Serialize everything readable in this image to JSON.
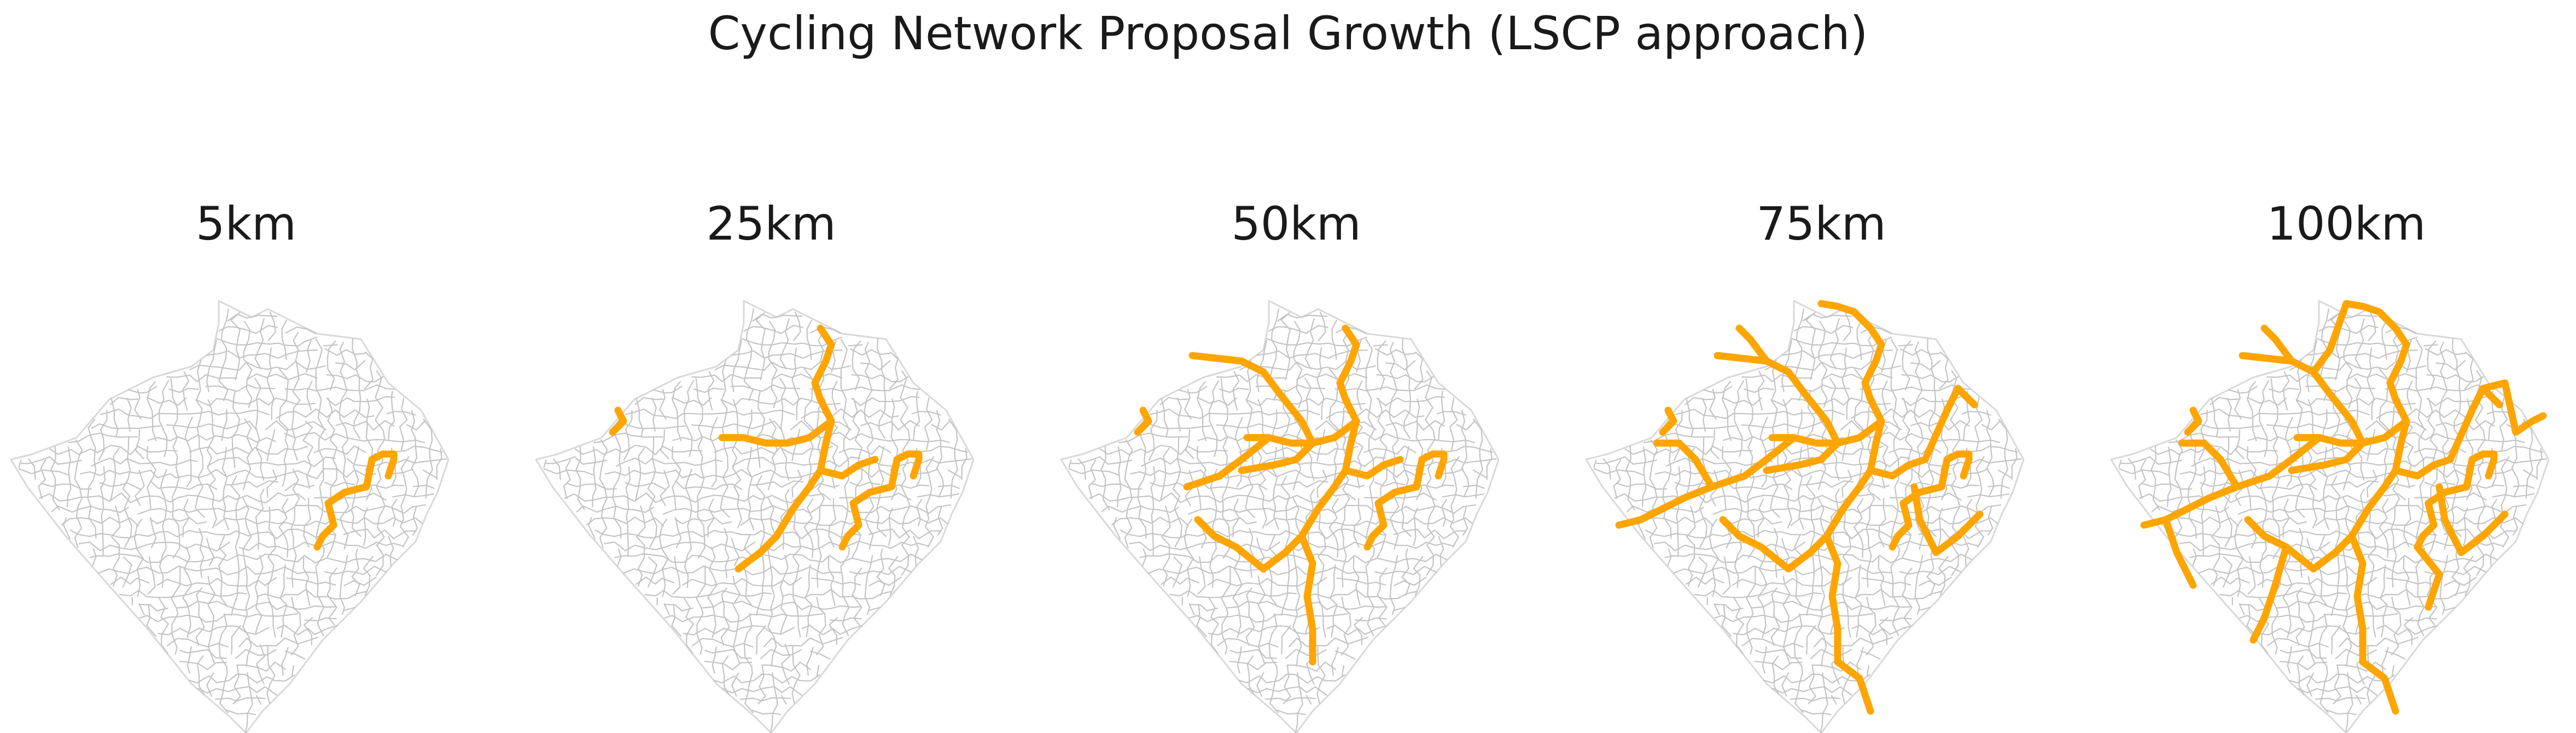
{
  "chart_data": {
    "type": "small-multiples-map",
    "title": "Cycling Network Proposal Growth (LSCP approach)",
    "route_color": "#FFA500",
    "boundary_color": "#c4c4c4",
    "panels": [
      {
        "label": "5km",
        "network_length_km": 5
      },
      {
        "label": "25km",
        "network_length_km": 25
      },
      {
        "label": "50km",
        "network_length_km": 50
      },
      {
        "label": "75km",
        "network_length_km": 75
      },
      {
        "label": "100km",
        "network_length_km": 100
      }
    ]
  }
}
